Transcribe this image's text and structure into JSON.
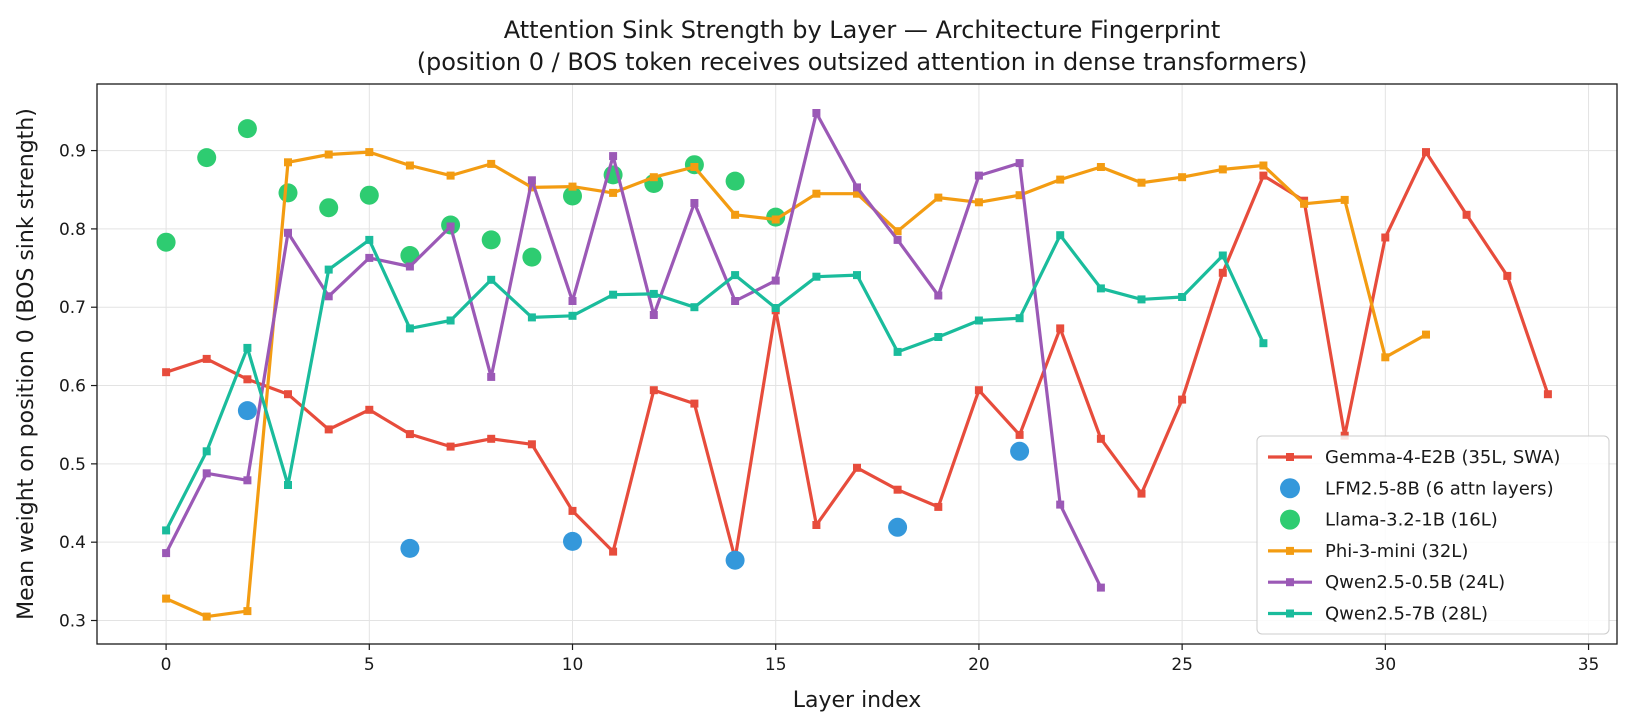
{
  "chart_data": {
    "type": "line",
    "title": "Attention Sink Strength by Layer — Architecture Fingerprint",
    "subtitle": "(position 0 / BOS token receives outsized attention in dense transformers)",
    "xlabel": "Layer index",
    "ylabel": "Mean weight on position 0 (BOS sink strength)",
    "xlim": [
      -1.7,
      35.7
    ],
    "ylim": [
      0.27,
      0.985
    ],
    "xticks": [
      0,
      5,
      10,
      15,
      20,
      25,
      30,
      35
    ],
    "yticks": [
      0.3,
      0.4,
      0.5,
      0.6,
      0.7,
      0.8,
      0.9
    ],
    "ytick_labels": [
      "0.3",
      "0.4",
      "0.5",
      "0.6",
      "0.7",
      "0.8",
      "0.9"
    ],
    "grid": true,
    "legend_position": "lower-right",
    "series": [
      {
        "name": "Gemma-4-E2B (35L, SWA)",
        "style": "line",
        "color": "#e74c3c",
        "x": [
          0,
          1,
          2,
          3,
          4,
          5,
          6,
          7,
          8,
          9,
          10,
          11,
          12,
          13,
          14,
          15,
          16,
          17,
          18,
          19,
          20,
          21,
          22,
          23,
          24,
          25,
          26,
          27,
          28,
          29,
          30,
          31,
          32,
          33,
          34
        ],
        "y": [
          0.617,
          0.634,
          0.608,
          0.589,
          0.544,
          0.569,
          0.538,
          0.522,
          0.532,
          0.525,
          0.44,
          0.388,
          0.594,
          0.577,
          0.379,
          0.696,
          0.422,
          0.495,
          0.467,
          0.445,
          0.594,
          0.537,
          0.673,
          0.532,
          0.462,
          0.582,
          0.744,
          0.868,
          0.836,
          0.536,
          0.789,
          0.898,
          0.818,
          0.74,
          0.589
        ]
      },
      {
        "name": "LFM2.5-8B (6 attn layers)",
        "style": "scatter",
        "color": "#3498db",
        "x": [
          2,
          6,
          10,
          14,
          18,
          21
        ],
        "y": [
          0.568,
          0.392,
          0.401,
          0.377,
          0.419,
          0.516
        ]
      },
      {
        "name": "Llama-3.2-1B (16L)",
        "style": "scatter",
        "color": "#2ecc71",
        "x": [
          0,
          1,
          2,
          3,
          4,
          5,
          6,
          7,
          8,
          9,
          10,
          11,
          12,
          13,
          14,
          15
        ],
        "y": [
          0.783,
          0.891,
          0.928,
          0.846,
          0.827,
          0.843,
          0.766,
          0.805,
          0.786,
          0.764,
          0.842,
          0.869,
          0.858,
          0.882,
          0.861,
          0.815
        ]
      },
      {
        "name": "Phi-3-mini (32L)",
        "style": "line",
        "color": "#f39c12",
        "x": [
          0,
          1,
          2,
          3,
          4,
          5,
          6,
          7,
          8,
          9,
          10,
          11,
          12,
          13,
          14,
          15,
          16,
          17,
          18,
          19,
          20,
          21,
          22,
          23,
          24,
          25,
          26,
          27,
          28,
          29,
          30,
          31
        ],
        "y": [
          0.328,
          0.305,
          0.312,
          0.885,
          0.895,
          0.898,
          0.881,
          0.868,
          0.883,
          0.853,
          0.854,
          0.846,
          0.866,
          0.879,
          0.818,
          0.812,
          0.845,
          0.845,
          0.797,
          0.84,
          0.834,
          0.843,
          0.863,
          0.879,
          0.859,
          0.866,
          0.876,
          0.881,
          0.832,
          0.837,
          0.636,
          0.665
        ]
      },
      {
        "name": "Qwen2.5-0.5B (24L)",
        "style": "line",
        "color": "#9b59b6",
        "x": [
          0,
          1,
          2,
          3,
          4,
          5,
          6,
          7,
          8,
          9,
          10,
          11,
          12,
          13,
          14,
          15,
          16,
          17,
          18,
          19,
          20,
          21,
          22,
          23
        ],
        "y": [
          0.386,
          0.488,
          0.479,
          0.795,
          0.714,
          0.763,
          0.752,
          0.803,
          0.611,
          0.862,
          0.708,
          0.893,
          0.69,
          0.833,
          0.708,
          0.734,
          0.948,
          0.853,
          0.786,
          0.715,
          0.868,
          0.884,
          0.448,
          0.342
        ]
      },
      {
        "name": "Qwen2.5-7B (28L)",
        "style": "line",
        "color": "#1abc9c",
        "x": [
          0,
          1,
          2,
          3,
          4,
          5,
          6,
          7,
          8,
          9,
          10,
          11,
          12,
          13,
          14,
          15,
          16,
          17,
          18,
          19,
          20,
          21,
          22,
          23,
          24,
          25,
          26,
          27
        ],
        "y": [
          0.415,
          0.516,
          0.648,
          0.473,
          0.748,
          0.786,
          0.673,
          0.683,
          0.735,
          0.687,
          0.689,
          0.716,
          0.717,
          0.7,
          0.741,
          0.699,
          0.739,
          0.741,
          0.643,
          0.662,
          0.683,
          0.686,
          0.792,
          0.724,
          0.71,
          0.713,
          0.766,
          0.654
        ]
      }
    ]
  }
}
